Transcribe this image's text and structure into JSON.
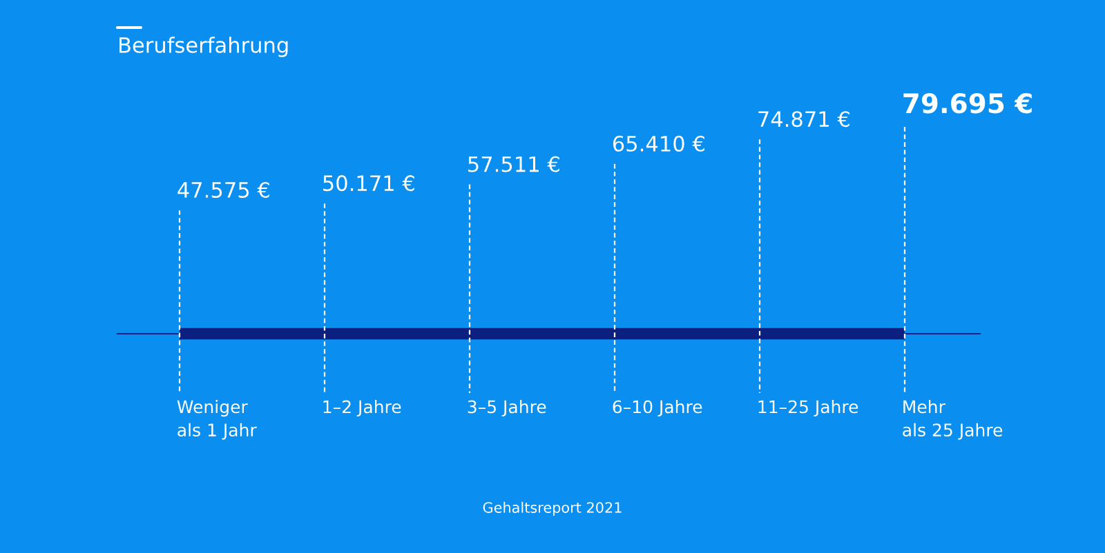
{
  "chart_data": {
    "type": "other",
    "title": "Berufserfahrung",
    "categories": [
      "Weniger\nals 1 Jahr",
      "1–2 Jahre",
      "3–5 Jahre",
      "6–10 Jahre",
      "11–25 Jahre",
      "Mehr\nals 25 Jahre"
    ],
    "values": [
      47575,
      50171,
      57511,
      65410,
      74871,
      79695
    ],
    "value_labels": [
      "47.575 €",
      "50.171 €",
      "57.511 €",
      "65.410 €",
      "74.871 €",
      "79.695 €"
    ],
    "color": "#0d2080",
    "annotations": [
      "Gehaltsreport 2021"
    ]
  }
}
